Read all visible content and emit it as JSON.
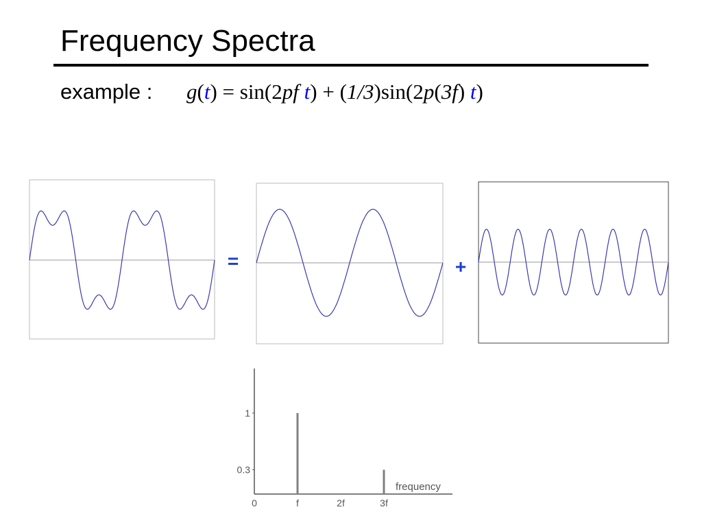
{
  "header": {
    "title": "Frequency Spectra"
  },
  "example": {
    "label": "example :",
    "formula": [
      {
        "text": "g",
        "italic": true
      },
      {
        "text": "("
      },
      {
        "text": "t",
        "italic": true,
        "color": "#0000ff"
      },
      {
        "text": ") = sin(2"
      },
      {
        "text": "pf",
        "italic": true
      },
      {
        "text": " "
      },
      {
        "text": "t",
        "italic": true,
        "color": "#0000ff"
      },
      {
        "text": ") + ("
      },
      {
        "text": "1/3",
        "italic": true
      },
      {
        "text": ")sin(2"
      },
      {
        "text": "p",
        "italic": true
      },
      {
        "text": "("
      },
      {
        "text": "3f",
        "italic": true
      },
      {
        "text": ") "
      },
      {
        "text": "t",
        "italic": true,
        "color": "#0000ff"
      },
      {
        "text": ")"
      }
    ]
  },
  "operators": [
    "=",
    "+"
  ],
  "chart_data": {
    "type": "bar",
    "categories": [
      "0",
      "f",
      "2f",
      "3f"
    ],
    "values": [
      0,
      1,
      0,
      0.3
    ],
    "ylim": [
      0,
      1.55
    ],
    "yticks": [
      0.3,
      1
    ],
    "x_label": "frequency",
    "color": "#808080"
  }
}
